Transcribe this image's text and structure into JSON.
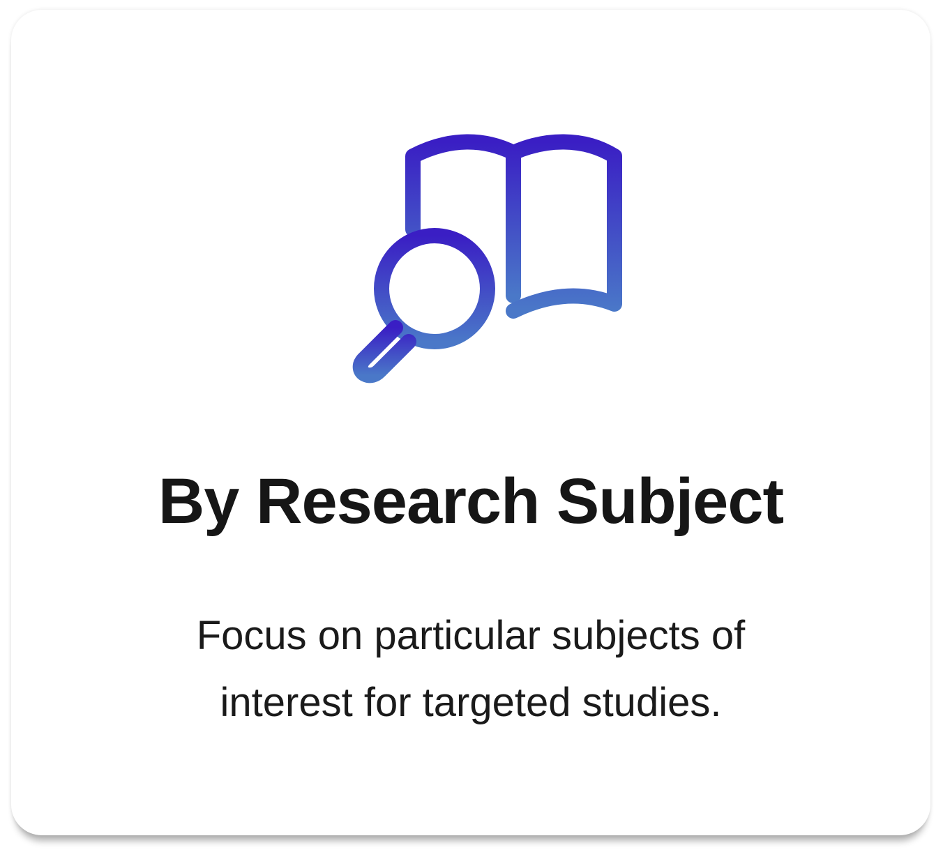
{
  "card": {
    "icon": "book-search-icon",
    "title": "By Research Subject",
    "description": "Focus on particular subjects of interest for targeted studies.",
    "colors": {
      "icon_gradient_top": "#3a1ec4",
      "icon_gradient_bottom": "#4a78c8",
      "title": "#161616",
      "text": "#1a1a1a",
      "background": "#ffffff"
    }
  }
}
